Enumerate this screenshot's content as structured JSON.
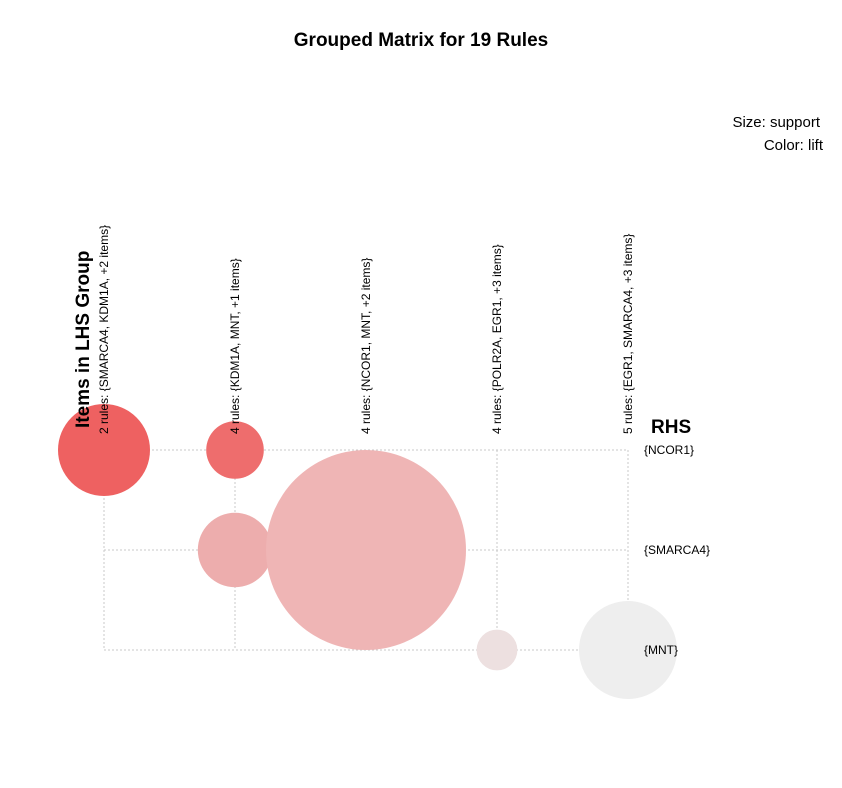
{
  "chart_data": {
    "type": "scatter",
    "title": "Grouped Matrix for 19 Rules",
    "legend": {
      "size_label": "Size: support",
      "color_label": "Color: lift",
      "placement": "top-right"
    },
    "xlabel": "Items in LHS Group",
    "ylabel": "RHS",
    "lhs_groups": [
      "2 rules: {SMARCA4, KDM1A, +2 items}",
      "4 rules: {KDM1A, MNT, +1 items}",
      "4 rules: {NCOR1, MNT, +2 items}",
      "4 rules: {POLR2A, EGR1, +3 items}",
      "5 rules: {EGR1, SMARCA4, +3 items}"
    ],
    "rhs_items": [
      "{NCOR1}",
      "{SMARCA4}",
      "{MNT}"
    ],
    "points": [
      {
        "lhs": 0,
        "rhs": 0,
        "support": 0.046,
        "color": "#ee6161"
      },
      {
        "lhs": 1,
        "rhs": 0,
        "support": 0.018,
        "color": "#ee6d6d"
      },
      {
        "lhs": 1,
        "rhs": 1,
        "support": 0.03,
        "color": "#edadad"
      },
      {
        "lhs": 2,
        "rhs": 1,
        "support": 0.217,
        "color": "#efb5b5"
      },
      {
        "lhs": 3,
        "rhs": 2,
        "support": 0.009,
        "color": "#ede0e0"
      },
      {
        "lhs": 4,
        "rhs": 2,
        "support": 0.052,
        "color": "#eeeeee"
      }
    ],
    "grid": true
  }
}
